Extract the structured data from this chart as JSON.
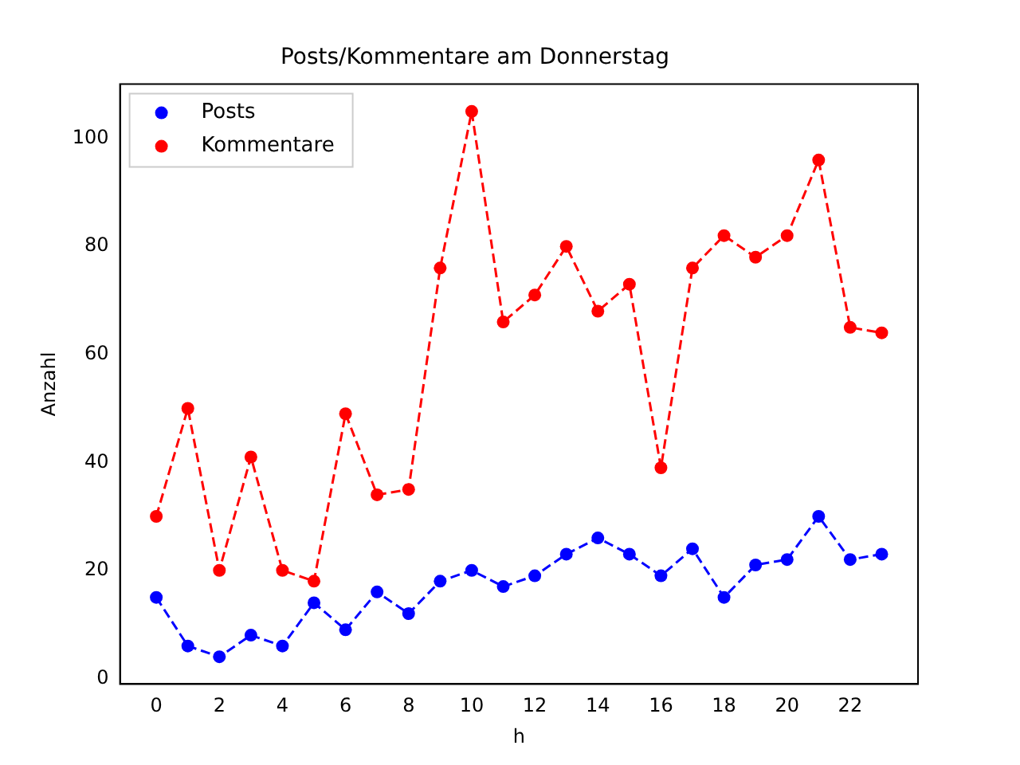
{
  "chart_data": {
    "type": "line",
    "title": "Posts/Kommentare am Donnerstag",
    "xlabel": "h",
    "ylabel": "Anzahl",
    "x": [
      0,
      1,
      2,
      3,
      4,
      5,
      6,
      7,
      8,
      9,
      10,
      11,
      12,
      13,
      14,
      15,
      16,
      17,
      18,
      19,
      20,
      21,
      22,
      23
    ],
    "series": [
      {
        "name": "Posts",
        "color": "#0000ff",
        "values": [
          15,
          6,
          4,
          8,
          6,
          14,
          9,
          16,
          12,
          18,
          20,
          17,
          19,
          23,
          26,
          23,
          19,
          24,
          15,
          21,
          22,
          30,
          22,
          23
        ]
      },
      {
        "name": "Kommentare",
        "color": "#ff0000",
        "values": [
          30,
          50,
          20,
          41,
          20,
          18,
          49,
          34,
          35,
          76,
          105,
          66,
          71,
          80,
          68,
          73,
          39,
          76,
          82,
          78,
          82,
          96,
          65,
          64
        ]
      }
    ],
    "xlim": [
      -1.15,
      24.15
    ],
    "xticks": [
      0,
      2,
      4,
      6,
      8,
      10,
      12,
      14,
      16,
      18,
      20,
      22
    ],
    "ylim": [
      -1.05,
      110.05
    ],
    "yticks": [
      0,
      20,
      40,
      60,
      80,
      100
    ],
    "grid": false,
    "legend": "top left",
    "marker": "circle",
    "line_style": "dashed"
  }
}
